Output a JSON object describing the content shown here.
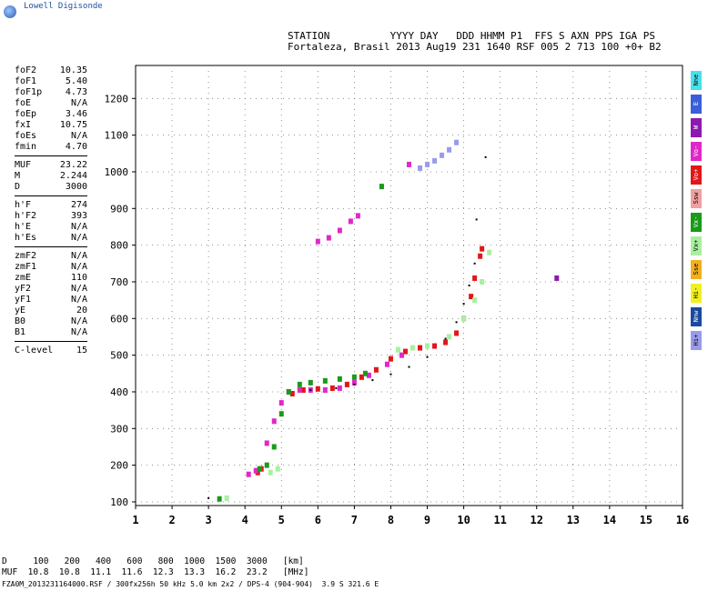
{
  "logo": {
    "text": "Lowell Digisonde",
    "icon": "globe-icon"
  },
  "header": {
    "line1": "STATION          YYYY DAY   DDD HHMM P1  FFS S AXN PPS IGA PS",
    "line2": "Fortaleza, Brasil 2013 Aug19 231 1640 RSF 005 2 713 100 +0+ B2"
  },
  "params": {
    "group1": [
      {
        "label": "foF2",
        "value": "10.35"
      },
      {
        "label": "foF1",
        "value": "5.40"
      },
      {
        "label": "foF1p",
        "value": "4.73"
      },
      {
        "label": "foE",
        "value": "N/A"
      },
      {
        "label": "foEp",
        "value": "3.46"
      },
      {
        "label": "fxI",
        "value": "10.75"
      },
      {
        "label": "foEs",
        "value": "N/A"
      },
      {
        "label": "fmin",
        "value": "4.70"
      }
    ],
    "group2": [
      {
        "label": "MUF",
        "value": "23.22"
      },
      {
        "label": "M",
        "value": "2.244"
      },
      {
        "label": "D",
        "value": "3000"
      }
    ],
    "group3": [
      {
        "label": "h'F",
        "value": "274"
      },
      {
        "label": "h'F2",
        "value": "393"
      },
      {
        "label": "h'E",
        "value": "N/A"
      },
      {
        "label": "h'Es",
        "value": "N/A"
      }
    ],
    "group4": [
      {
        "label": "zmF2",
        "value": "N/A"
      },
      {
        "label": "zmF1",
        "value": "N/A"
      },
      {
        "label": "zmE",
        "value": "110"
      },
      {
        "label": "yF2",
        "value": "N/A"
      },
      {
        "label": "yF1",
        "value": "N/A"
      },
      {
        "label": "yE",
        "value": "20"
      },
      {
        "label": "B0",
        "value": "N/A"
      },
      {
        "label": "B1",
        "value": "N/A"
      }
    ],
    "group5": [
      {
        "label": "C-level",
        "value": "15"
      }
    ]
  },
  "legend": [
    {
      "label": "Nne",
      "color": "#48e0ea"
    },
    {
      "label": "E",
      "color": "#3a5fd8"
    },
    {
      "label": "W",
      "color": "#8a1ab0"
    },
    {
      "label": "Vo-",
      "color": "#e028c8"
    },
    {
      "label": "Vo+",
      "color": "#e01818"
    },
    {
      "label": "Ssw",
      "color": "#f0a0a0"
    },
    {
      "label": "Vx-",
      "color": "#1a9a1a"
    },
    {
      "label": "Vx+",
      "color": "#a8f0a0"
    },
    {
      "label": "Sse",
      "color": "#f2b020"
    },
    {
      "label": "Hi-",
      "color": "#f0f020"
    },
    {
      "label": "Nnw",
      "color": "#1a4aa0"
    },
    {
      "label": "Hi+",
      "color": "#9a9aec"
    }
  ],
  "footer": {
    "line1": "D     100   200   400   600   800  1000  1500  3000   [km]",
    "line2": "MUF  10.8  10.8  11.1  11.6  12.3  13.3  16.2  23.2   [MHz]",
    "line3": "FZA0M_2013231164000.RSF / 300fx256h 50 kHz 5.0 km 2x2 / DPS-4 (904-904)  3.9 S 321.6 E"
  },
  "chart_data": {
    "type": "scatter",
    "xlim": [
      1,
      16
    ],
    "ylim": [
      90,
      1290
    ],
    "xticks": [
      1,
      2,
      3,
      4,
      5,
      6,
      7,
      8,
      9,
      10,
      11,
      12,
      13,
      14,
      15,
      16
    ],
    "yticks": [
      100,
      200,
      300,
      400,
      500,
      600,
      700,
      800,
      900,
      1000,
      1100,
      1200
    ],
    "grid": true,
    "series": [
      {
        "name": "Vo+",
        "color": "#e01818",
        "points": [
          [
            4.35,
            180
          ],
          [
            4.45,
            190
          ],
          [
            5.3,
            395
          ],
          [
            5.6,
            405
          ],
          [
            6.0,
            408
          ],
          [
            6.4,
            410
          ],
          [
            6.8,
            420
          ],
          [
            7.2,
            440
          ],
          [
            7.6,
            460
          ],
          [
            8.0,
            490
          ],
          [
            8.4,
            510
          ],
          [
            8.8,
            520
          ],
          [
            9.2,
            525
          ],
          [
            9.5,
            535
          ],
          [
            9.8,
            560
          ],
          [
            10.0,
            600
          ],
          [
            10.2,
            660
          ],
          [
            10.3,
            710
          ],
          [
            10.45,
            770
          ],
          [
            10.5,
            790
          ]
        ]
      },
      {
        "name": "Vo-",
        "color": "#e028c8",
        "points": [
          [
            4.1,
            175
          ],
          [
            4.3,
            185
          ],
          [
            4.6,
            260
          ],
          [
            4.8,
            320
          ],
          [
            5.0,
            370
          ],
          [
            5.2,
            400
          ],
          [
            5.5,
            405
          ],
          [
            5.8,
            405
          ],
          [
            6.2,
            405
          ],
          [
            6.6,
            410
          ],
          [
            7.0,
            425
          ],
          [
            7.4,
            445
          ],
          [
            7.9,
            475
          ],
          [
            8.3,
            500
          ],
          [
            6.0,
            810
          ],
          [
            6.3,
            820
          ],
          [
            6.6,
            840
          ],
          [
            6.9,
            865
          ],
          [
            7.1,
            880
          ],
          [
            8.5,
            1020
          ]
        ]
      },
      {
        "name": "Vx-",
        "color": "#1a9a1a",
        "points": [
          [
            4.4,
            190
          ],
          [
            4.6,
            200
          ],
          [
            4.8,
            250
          ],
          [
            5.0,
            340
          ],
          [
            5.2,
            400
          ],
          [
            5.5,
            420
          ],
          [
            5.8,
            425
          ],
          [
            6.2,
            430
          ],
          [
            6.6,
            435
          ],
          [
            7.0,
            440
          ],
          [
            7.3,
            450
          ],
          [
            3.3,
            108
          ],
          [
            7.75,
            960
          ]
        ]
      },
      {
        "name": "Vx+",
        "color": "#a8f0a0",
        "points": [
          [
            4.7,
            180
          ],
          [
            4.9,
            190
          ],
          [
            8.2,
            515
          ],
          [
            8.6,
            520
          ],
          [
            9.0,
            525
          ],
          [
            9.6,
            550
          ],
          [
            10.0,
            600
          ],
          [
            10.3,
            650
          ],
          [
            10.5,
            700
          ],
          [
            10.7,
            780
          ],
          [
            3.5,
            110
          ]
        ]
      },
      {
        "name": "Hi+",
        "color": "#9a9aec",
        "points": [
          [
            8.8,
            1010
          ],
          [
            9.0,
            1020
          ],
          [
            9.2,
            1030
          ],
          [
            9.4,
            1045
          ],
          [
            9.6,
            1060
          ],
          [
            9.8,
            1080
          ]
        ]
      },
      {
        "name": "W",
        "color": "#8a1ab0",
        "points": [
          [
            12.55,
            710
          ]
        ]
      },
      {
        "name": "model",
        "color": "#000000",
        "points": [
          [
            5.8,
            405
          ],
          [
            6.5,
            410
          ],
          [
            7.0,
            420
          ],
          [
            7.5,
            432
          ],
          [
            8.0,
            448
          ],
          [
            8.5,
            468
          ],
          [
            9.0,
            495
          ],
          [
            9.5,
            545
          ],
          [
            9.8,
            590
          ],
          [
            10.0,
            640
          ],
          [
            10.15,
            690
          ],
          [
            10.3,
            750
          ],
          [
            10.35,
            870
          ],
          [
            10.6,
            1040
          ],
          [
            3.0,
            110
          ]
        ]
      }
    ]
  }
}
